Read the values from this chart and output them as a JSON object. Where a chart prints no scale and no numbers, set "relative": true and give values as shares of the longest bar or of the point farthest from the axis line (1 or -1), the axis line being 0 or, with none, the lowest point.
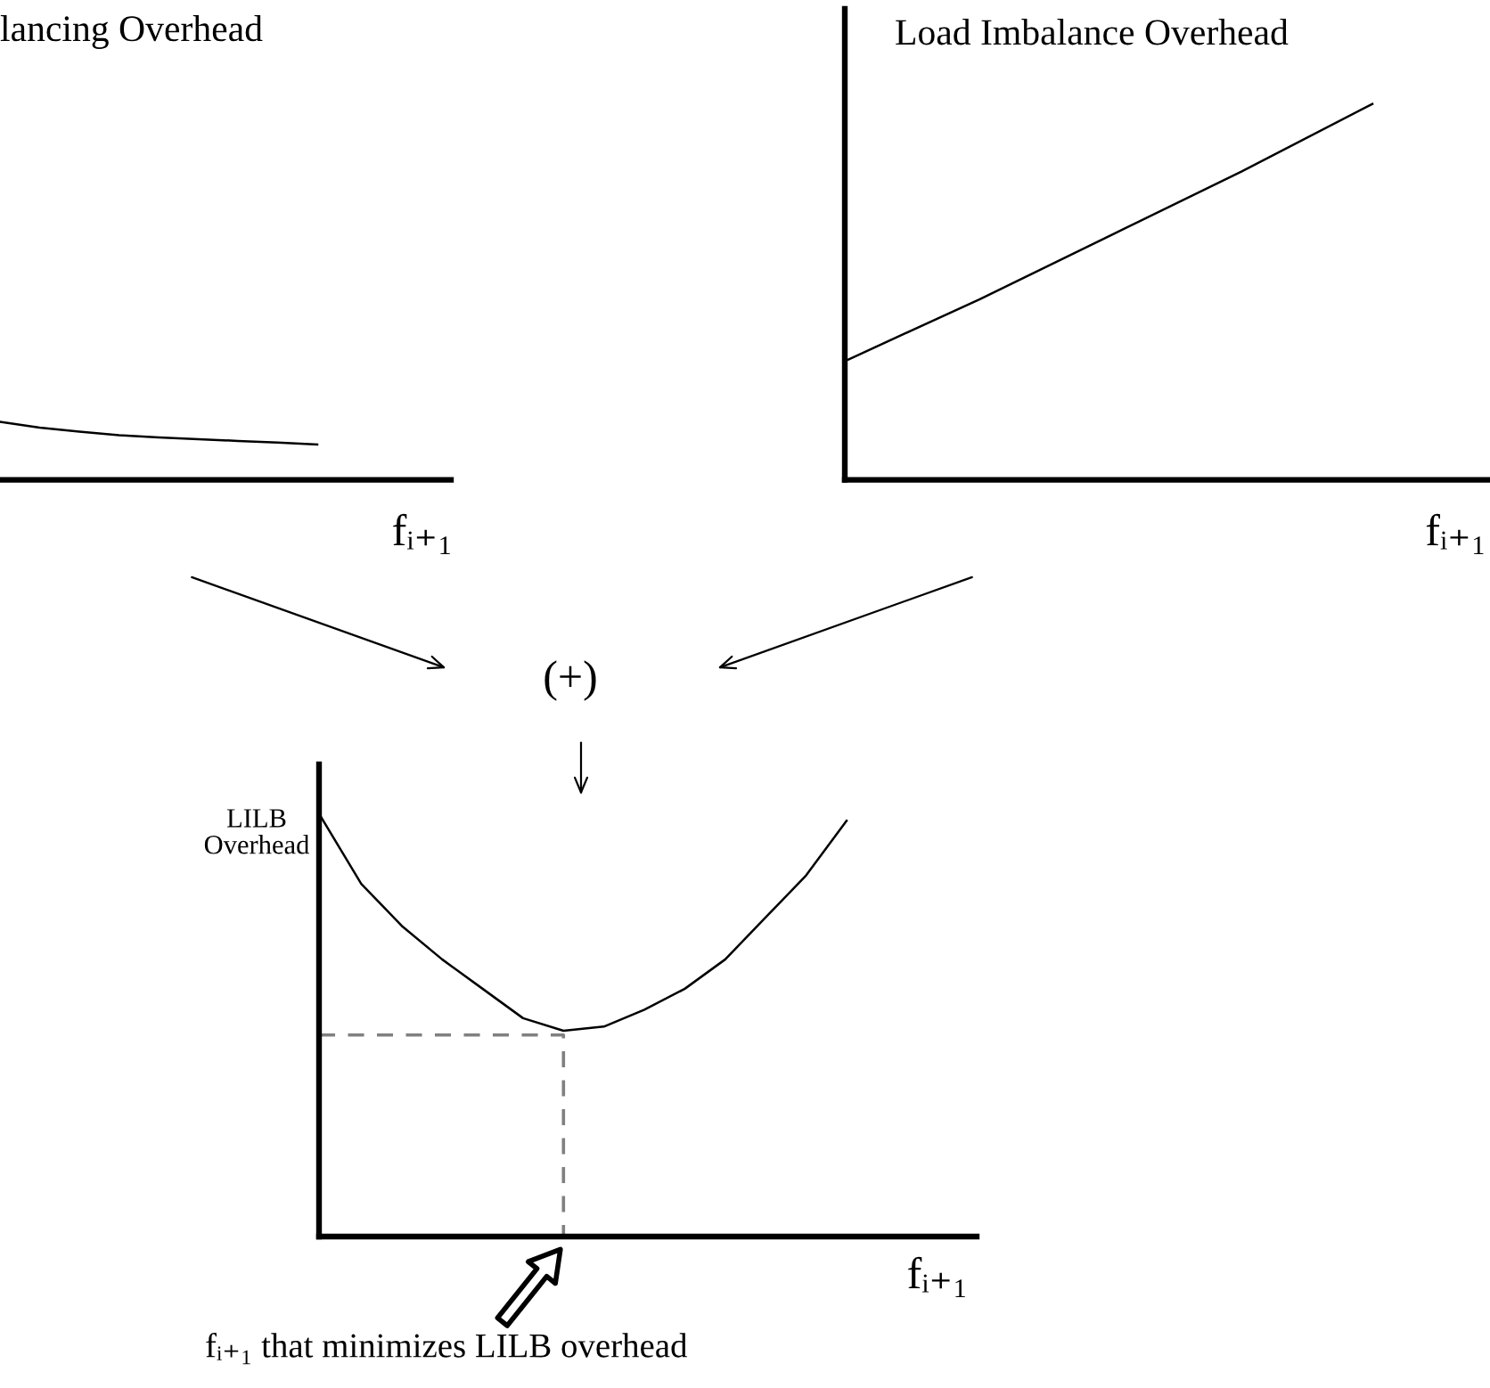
{
  "chart_data": [
    {
      "type": "line",
      "title": "lancing Overhead",
      "xlabel": "fᵢ₊₁",
      "categories": [
        null,
        null,
        null,
        null,
        null,
        null,
        null,
        null,
        null
      ],
      "relative": true,
      "series": [
        {
          "color": "#000000",
          "values": [
            1,
            0.9,
            0.83,
            0.77,
            0.73,
            0.7,
            0.67,
            0.64,
            0.61
          ]
        }
      ]
    },
    {
      "type": "line",
      "title": "Load Imbalance Overhead",
      "xlabel": "fᵢ₊₁",
      "categories": [
        null,
        null,
        null,
        null,
        null
      ],
      "relative": true,
      "series": [
        {
          "color": "#000000",
          "values": [
            0.32,
            0.48,
            0.65,
            0.82,
            1
          ]
        }
      ]
    },
    {
      "type": "line",
      "ylabel": "LILB\nOverhead",
      "xlabel": "fᵢ₊₁",
      "categories": [
        null,
        null,
        null,
        null,
        null,
        null,
        null,
        null,
        null,
        null,
        null,
        null,
        null,
        null
      ],
      "relative": true,
      "series": [
        {
          "color": "#000000",
          "values": [
            1,
            0.84,
            0.74,
            0.66,
            0.59,
            0.52,
            0.49,
            0.5,
            0.54,
            0.59,
            0.66,
            0.76,
            0.86,
            0.99
          ]
        }
      ],
      "ref_lines": [
        {
          "axis": "y",
          "value": 0.48,
          "color": "#808080",
          "line_style": "dashed"
        }
      ],
      "annotations": [
        "(+)",
        "fᵢ₊₁ that minimizes LILB overhead"
      ]
    }
  ]
}
